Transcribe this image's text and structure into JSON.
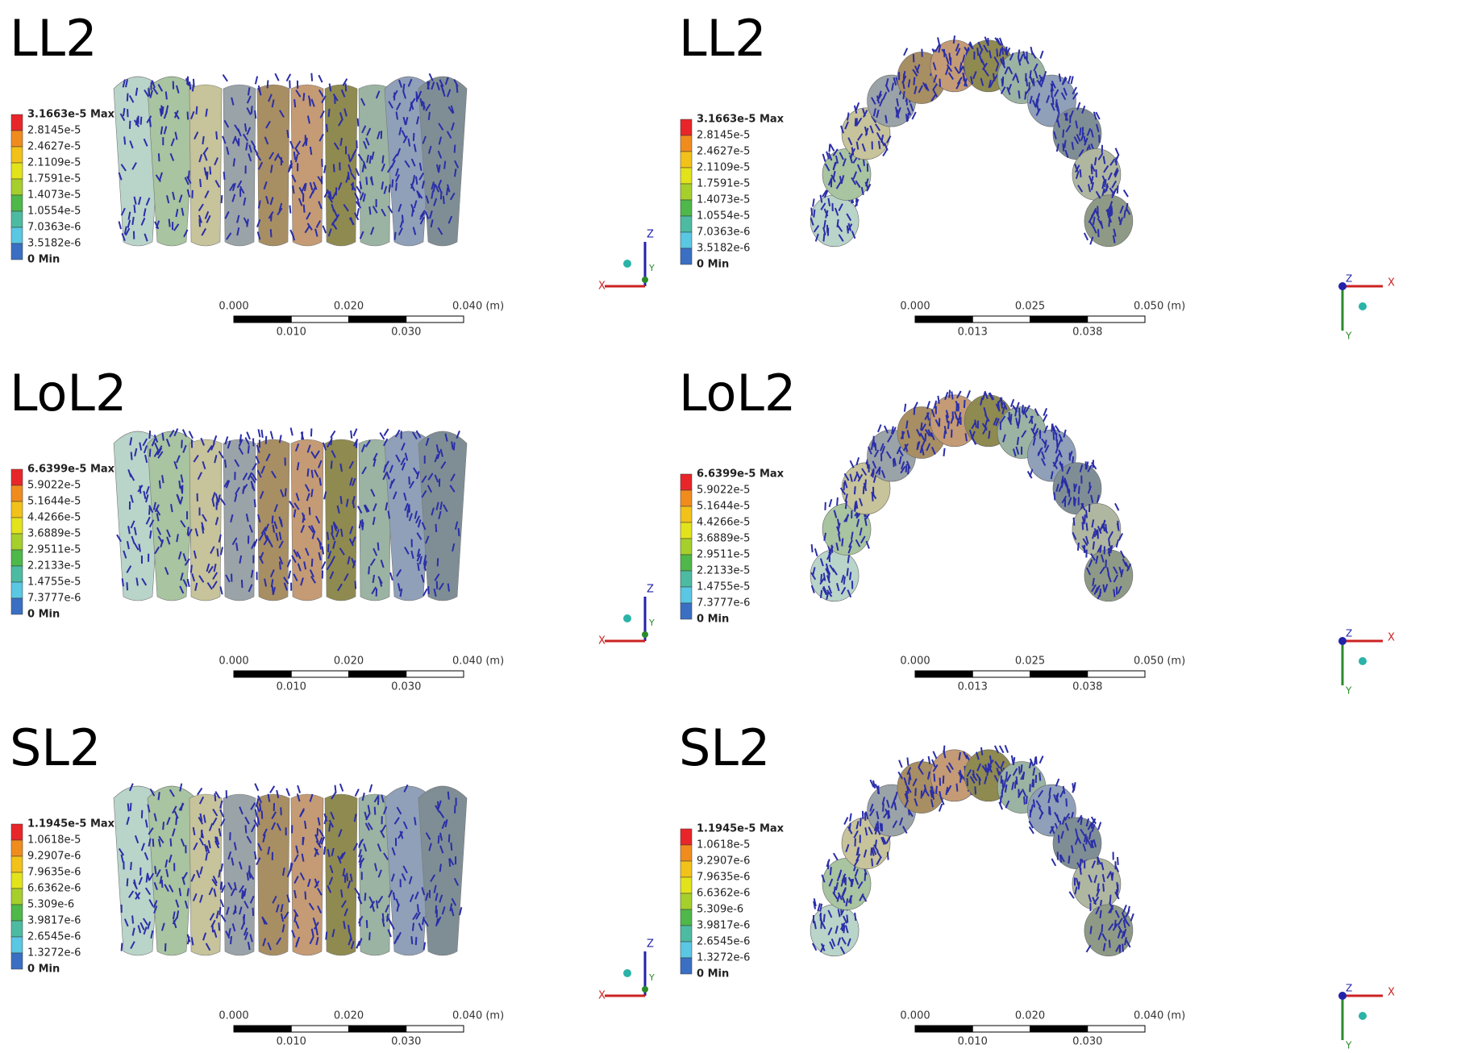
{
  "panels": [
    {
      "title": "LL2",
      "legend": [
        "3.1663e-5 Max",
        "2.8145e-5",
        "2.4627e-5",
        "2.1109e-5",
        "1.7591e-5",
        "1.4073e-5",
        "1.0554e-5",
        "7.0363e-6",
        "3.5182e-6",
        "0 Min"
      ],
      "scale_top": [
        "0.000",
        "0.020",
        "0.040 (m)"
      ],
      "scale_bottom": [
        "0.010",
        "0.030"
      ],
      "axes": [
        "Z",
        "X",
        "Y"
      ]
    },
    {
      "title": "LL2",
      "legend": [
        "3.1663e-5 Max",
        "2.8145e-5",
        "2.4627e-5",
        "2.1109e-5",
        "1.7591e-5",
        "1.4073e-5",
        "1.0554e-5",
        "7.0363e-6",
        "3.5182e-6",
        "0 Min"
      ],
      "scale_top": [
        "0.000",
        "0.025",
        "0.050 (m)"
      ],
      "scale_bottom": [
        "0.013",
        "0.038"
      ],
      "axes": [
        "Z",
        "X",
        "Y"
      ]
    },
    {
      "title": "LoL2",
      "legend": [
        "6.6399e-5 Max",
        "5.9022e-5",
        "5.1644e-5",
        "4.4266e-5",
        "3.6889e-5",
        "2.9511e-5",
        "2.2133e-5",
        "1.4755e-5",
        "7.3777e-6",
        "0 Min"
      ],
      "scale_top": [
        "0.000",
        "0.020",
        "0.040 (m)"
      ],
      "scale_bottom": [
        "0.010",
        "0.030"
      ],
      "axes": [
        "Z",
        "X",
        "Y"
      ]
    },
    {
      "title": "LoL2",
      "legend": [
        "6.6399e-5 Max",
        "5.9022e-5",
        "5.1644e-5",
        "4.4266e-5",
        "3.6889e-5",
        "2.9511e-5",
        "2.2133e-5",
        "1.4755e-5",
        "7.3777e-6",
        "0 Min"
      ],
      "scale_top": [
        "0.000",
        "0.025",
        "0.050 (m)"
      ],
      "scale_bottom": [
        "0.013",
        "0.038"
      ],
      "axes": [
        "Z",
        "X",
        "Y"
      ]
    },
    {
      "title": "SL2",
      "legend": [
        "1.1945e-5 Max",
        "1.0618e-5",
        "9.2907e-6",
        "7.9635e-6",
        "6.6362e-6",
        "5.309e-6",
        "3.9817e-6",
        "2.6545e-6",
        "1.3272e-6",
        "0 Min"
      ],
      "scale_top": [
        "0.000",
        "0.020",
        "0.040 (m)"
      ],
      "scale_bottom": [
        "0.010",
        "0.030"
      ],
      "axes": [
        "Z",
        "X",
        "Y"
      ]
    },
    {
      "title": "SL2",
      "legend": [
        "1.1945e-5 Max",
        "1.0618e-5",
        "9.2907e-6",
        "7.9635e-6",
        "6.6362e-6",
        "5.309e-6",
        "3.9817e-6",
        "2.6545e-6",
        "1.3272e-6",
        "0 Min"
      ],
      "scale_top": [
        "0.000",
        "0.020",
        "0.040 (m)"
      ],
      "scale_bottom": [
        "0.010",
        "0.030"
      ],
      "axes": [
        "Z",
        "X",
        "Y"
      ]
    }
  ]
}
